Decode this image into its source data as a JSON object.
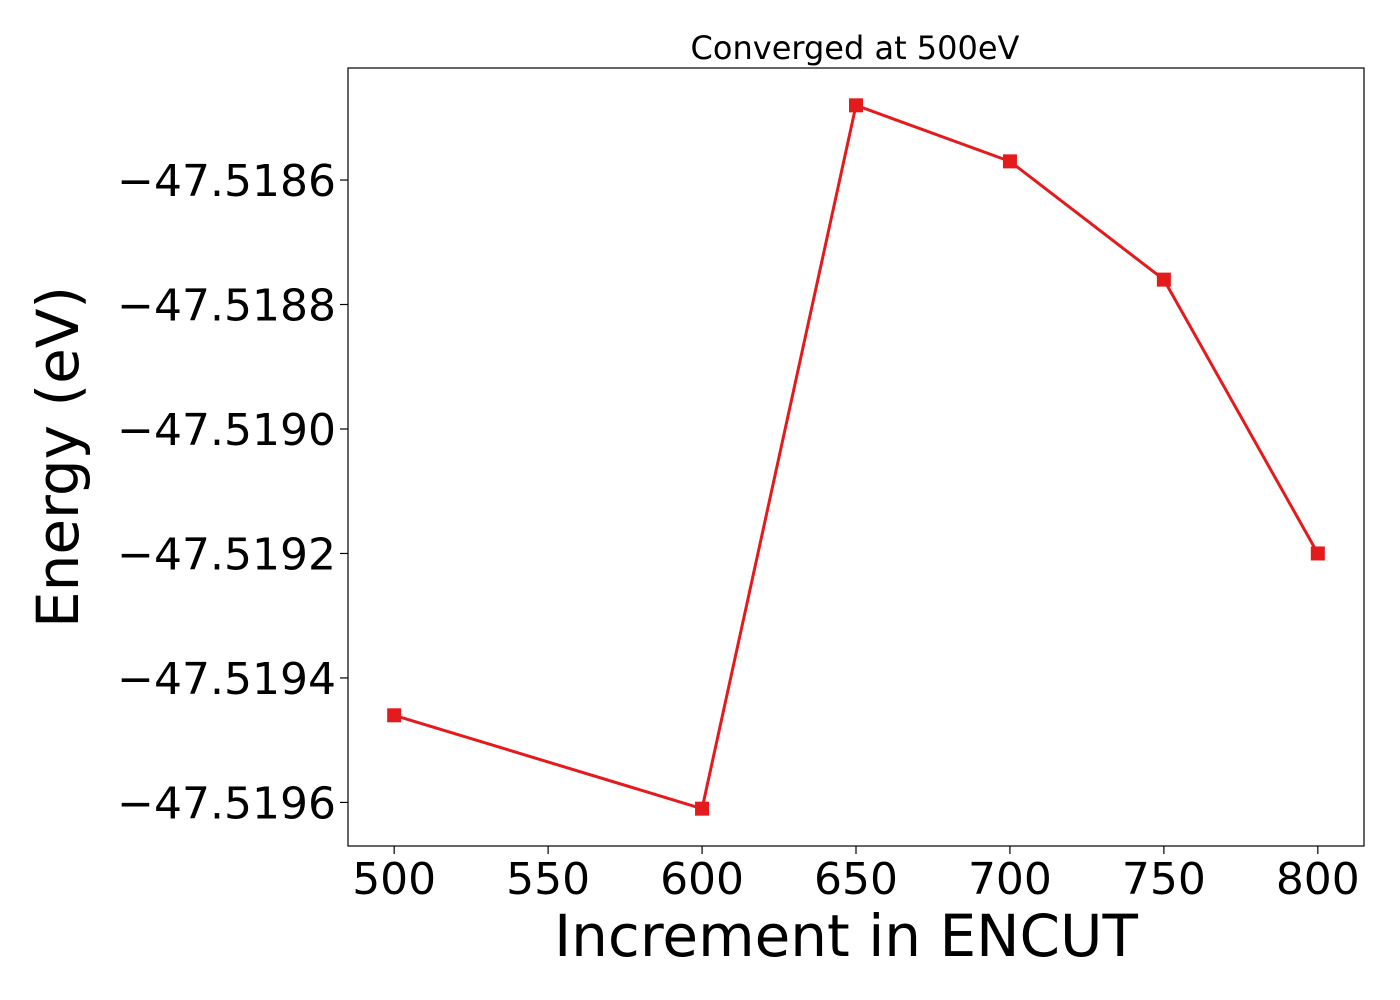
{
  "chart_data": {
    "type": "line",
    "title": "Converged at 500eV",
    "xlabel": "Increment in ENCUT",
    "ylabel": "Energy (eV)",
    "x": [
      500,
      600,
      650,
      700,
      750,
      800
    ],
    "series": [
      {
        "values": [
          -47.51946,
          -47.51961,
          -47.51848,
          -47.51857,
          -47.51876,
          -47.5192
        ],
        "color": "#e41a1c",
        "marker": "square"
      }
    ],
    "xlim": [
      485,
      815
    ],
    "ylim": [
      -47.51967,
      -47.51842
    ],
    "xticks": [
      500,
      550,
      600,
      650,
      700,
      750,
      800
    ],
    "yticks": [
      -47.5186,
      -47.5188,
      -47.519,
      -47.5192,
      -47.5194,
      -47.5196
    ],
    "ytick_labels": [
      "−47.5186",
      "−47.5188",
      "−47.5190",
      "−47.5192",
      "−47.5194",
      "−47.5196"
    ],
    "grid": false,
    "legend": false
  }
}
